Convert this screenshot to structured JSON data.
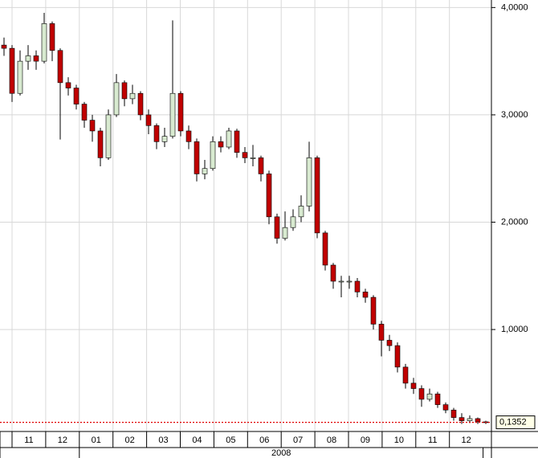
{
  "chart_data": {
    "type": "candlestick",
    "categories": [
      "11",
      "12",
      "01",
      "02",
      "03",
      "04",
      "05",
      "06",
      "07",
      "08",
      "09",
      "10",
      "11",
      "12"
    ],
    "year": "2008",
    "ylim": [
      0.05,
      4.07
    ],
    "yticks": [
      {
        "value": 1,
        "label": "1,0000"
      },
      {
        "value": 2,
        "label": "2,0000"
      },
      {
        "value": 3,
        "label": "3,0000"
      },
      {
        "value": 4,
        "label": "4,0000"
      }
    ],
    "grid": true,
    "up_color": "#d8ead0",
    "down_color": "#c00000",
    "last_value": {
      "value": 0.1352,
      "label": "0,1352"
    },
    "open": [
      3.65,
      3.62,
      3.2,
      3.5,
      3.55,
      3.5,
      3.85,
      3.6,
      3.3,
      3.25,
      3.1,
      2.95,
      2.85,
      2.6,
      3.0,
      3.3,
      3.15,
      3.2,
      3.0,
      2.9,
      2.75,
      2.8,
      3.2,
      2.85,
      2.75,
      2.45,
      2.5,
      2.75,
      2.7,
      2.85,
      2.65,
      2.6,
      2.6,
      2.45,
      2.05,
      1.85,
      1.95,
      2.05,
      2.15,
      2.6,
      1.9,
      1.6,
      1.45,
      1.45,
      1.45,
      1.35,
      1.3,
      1.05,
      0.9,
      0.85,
      0.65,
      0.5,
      0.45,
      0.35,
      0.4,
      0.3,
      0.25,
      0.18,
      0.15,
      0.17,
      0.14
    ],
    "high": [
      3.72,
      3.65,
      3.6,
      3.65,
      3.6,
      3.95,
      3.87,
      3.62,
      3.35,
      3.28,
      3.12,
      3.0,
      2.88,
      3.05,
      3.38,
      3.32,
      3.28,
      3.22,
      3.05,
      2.92,
      2.88,
      3.88,
      3.22,
      2.9,
      2.78,
      2.58,
      2.8,
      2.8,
      2.88,
      2.87,
      2.7,
      2.72,
      2.62,
      2.48,
      2.08,
      2.1,
      2.12,
      2.25,
      2.75,
      2.62,
      1.92,
      1.62,
      1.5,
      1.5,
      1.48,
      1.38,
      1.32,
      1.08,
      0.95,
      0.88,
      0.68,
      0.55,
      0.48,
      0.45,
      0.42,
      0.32,
      0.27,
      0.22,
      0.2,
      0.18,
      0.15
    ],
    "low": [
      3.55,
      3.12,
      3.18,
      3.42,
      3.42,
      3.48,
      3.5,
      2.77,
      3.18,
      3.05,
      2.88,
      2.75,
      2.52,
      2.58,
      2.98,
      3.08,
      3.1,
      2.95,
      2.82,
      2.68,
      2.7,
      2.78,
      2.8,
      2.68,
      2.38,
      2.4,
      2.48,
      2.65,
      2.68,
      2.6,
      2.55,
      2.52,
      2.38,
      1.98,
      1.8,
      1.83,
      1.92,
      2.0,
      2.1,
      1.85,
      1.55,
      1.38,
      1.3,
      1.38,
      1.3,
      1.25,
      1.0,
      0.75,
      0.8,
      0.6,
      0.45,
      0.4,
      0.28,
      0.33,
      0.27,
      0.22,
      0.15,
      0.12,
      0.13,
      0.12,
      0.12
    ],
    "close": [
      3.62,
      3.2,
      3.5,
      3.55,
      3.5,
      3.85,
      3.6,
      3.3,
      3.25,
      3.1,
      2.95,
      2.85,
      2.6,
      3.0,
      3.3,
      3.15,
      3.2,
      3.0,
      2.9,
      2.75,
      2.8,
      3.2,
      2.85,
      2.75,
      2.45,
      2.5,
      2.75,
      2.7,
      2.85,
      2.65,
      2.6,
      2.6,
      2.45,
      2.05,
      1.85,
      1.95,
      2.05,
      2.15,
      2.6,
      1.9,
      1.6,
      1.45,
      1.45,
      1.45,
      1.35,
      1.3,
      1.05,
      0.9,
      0.85,
      0.65,
      0.5,
      0.45,
      0.35,
      0.4,
      0.3,
      0.25,
      0.18,
      0.15,
      0.17,
      0.14,
      0.1352
    ]
  }
}
